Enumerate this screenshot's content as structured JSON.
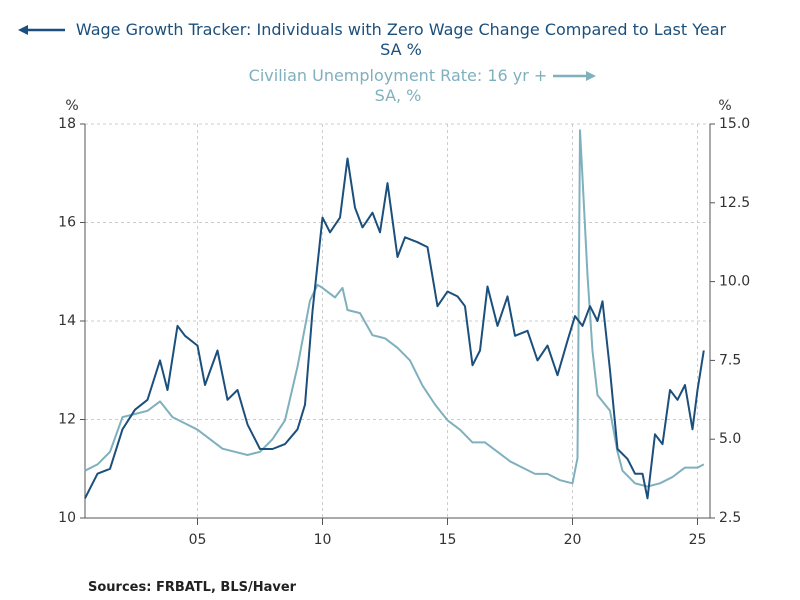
{
  "chart_data": {
    "type": "line",
    "source": "Sources:  FRBATL, BLS/Haver",
    "ylabel": "%",
    "y2label": "%",
    "xlim": [
      2000.5,
      2025.5
    ],
    "xticks": [
      {
        "value": 2005,
        "label": "05"
      },
      {
        "value": 2010,
        "label": "10"
      },
      {
        "value": 2015,
        "label": "15"
      },
      {
        "value": 2020,
        "label": "20"
      },
      {
        "value": 2025,
        "label": "25"
      }
    ],
    "ylim": [
      10,
      18
    ],
    "yticks": [
      10,
      12,
      14,
      16,
      18
    ],
    "y2lim": [
      2.5,
      15
    ],
    "y2ticks": [
      2.5,
      {
        "value": 5,
        "label": "5.0"
      },
      7.5,
      {
        "value": 10,
        "label": "10.0"
      },
      12.5,
      {
        "value": 15,
        "label": "15.0"
      }
    ],
    "grid": true,
    "series": [
      {
        "name": "Wage Growth Tracker: Individuals with Zero Wage Change Compared to Last Year SA    %",
        "color": "#1b4f7c",
        "axis": "y",
        "x": [
          2000.5,
          2001,
          2001.5,
          2002,
          2002.5,
          2003,
          2003.5,
          2003.8,
          2004.2,
          2004.5,
          2005,
          2005.3,
          2005.8,
          2006.2,
          2006.6,
          2007,
          2007.5,
          2008,
          2008.5,
          2009,
          2009.3,
          2009.6,
          2010,
          2010.3,
          2010.7,
          2011,
          2011.3,
          2011.6,
          2012,
          2012.3,
          2012.6,
          2013,
          2013.3,
          2013.8,
          2014.2,
          2014.6,
          2015,
          2015.4,
          2015.7,
          2016,
          2016.3,
          2016.6,
          2017,
          2017.4,
          2017.7,
          2018.2,
          2018.6,
          2019,
          2019.4,
          2019.8,
          2020.1,
          2020.4,
          2020.7,
          2021,
          2021.2,
          2021.5,
          2021.8,
          2022.2,
          2022.5,
          2022.8,
          2023,
          2023.3,
          2023.6,
          2023.9,
          2024.2,
          2024.5,
          2024.8,
          2025,
          2025.25
        ],
        "values": [
          10.4,
          10.9,
          11.0,
          11.8,
          12.2,
          12.4,
          13.2,
          12.6,
          13.9,
          13.7,
          13.5,
          12.7,
          13.4,
          12.4,
          12.6,
          11.9,
          11.4,
          11.4,
          11.5,
          11.8,
          12.3,
          14.2,
          16.1,
          15.8,
          16.1,
          17.3,
          16.3,
          15.9,
          16.2,
          15.8,
          16.8,
          15.3,
          15.7,
          15.6,
          15.5,
          14.3,
          14.6,
          14.5,
          14.3,
          13.1,
          13.4,
          14.7,
          13.9,
          14.5,
          13.7,
          13.8,
          13.2,
          13.5,
          12.9,
          13.6,
          14.1,
          13.9,
          14.3,
          14.0,
          14.4,
          13.0,
          11.4,
          11.2,
          10.9,
          10.9,
          10.4,
          11.7,
          11.5,
          12.6,
          12.4,
          12.7,
          11.8,
          12.6,
          13.4
        ]
      },
      {
        "name": "Civilian Unemployment Rate: 16 yr + SA, %",
        "color": "#7fb0be",
        "axis": "y2",
        "x": [
          2000.5,
          2001,
          2001.5,
          2002,
          2002.5,
          2003,
          2003.5,
          2004,
          2004.5,
          2005,
          2005.5,
          2006,
          2006.5,
          2007,
          2007.5,
          2008,
          2008.5,
          2009,
          2009.5,
          2009.8,
          2010,
          2010.5,
          2010.8,
          2011,
          2011.5,
          2012,
          2012.5,
          2013,
          2013.5,
          2014,
          2014.5,
          2015,
          2015.5,
          2016,
          2016.5,
          2017,
          2017.5,
          2018,
          2018.5,
          2019,
          2019.5,
          2020,
          2020.2,
          2020.3,
          2020.4,
          2020.6,
          2020.8,
          2021,
          2021.5,
          2021.8,
          2022,
          2022.5,
          2023,
          2023.5,
          2024,
          2024.5,
          2025,
          2025.25
        ],
        "values": [
          4.0,
          4.2,
          4.6,
          5.7,
          5.8,
          5.9,
          6.2,
          5.7,
          5.5,
          5.3,
          5.0,
          4.7,
          4.6,
          4.5,
          4.6,
          5.0,
          5.6,
          7.3,
          9.4,
          9.9,
          9.8,
          9.5,
          9.8,
          9.1,
          9.0,
          8.3,
          8.2,
          7.9,
          7.5,
          6.7,
          6.1,
          5.6,
          5.3,
          4.9,
          4.9,
          4.6,
          4.3,
          4.1,
          3.9,
          3.9,
          3.7,
          3.6,
          4.4,
          14.8,
          13.3,
          10.2,
          7.8,
          6.4,
          5.9,
          4.6,
          4.0,
          3.6,
          3.5,
          3.6,
          3.8,
          4.1,
          4.1,
          4.2
        ]
      }
    ]
  }
}
